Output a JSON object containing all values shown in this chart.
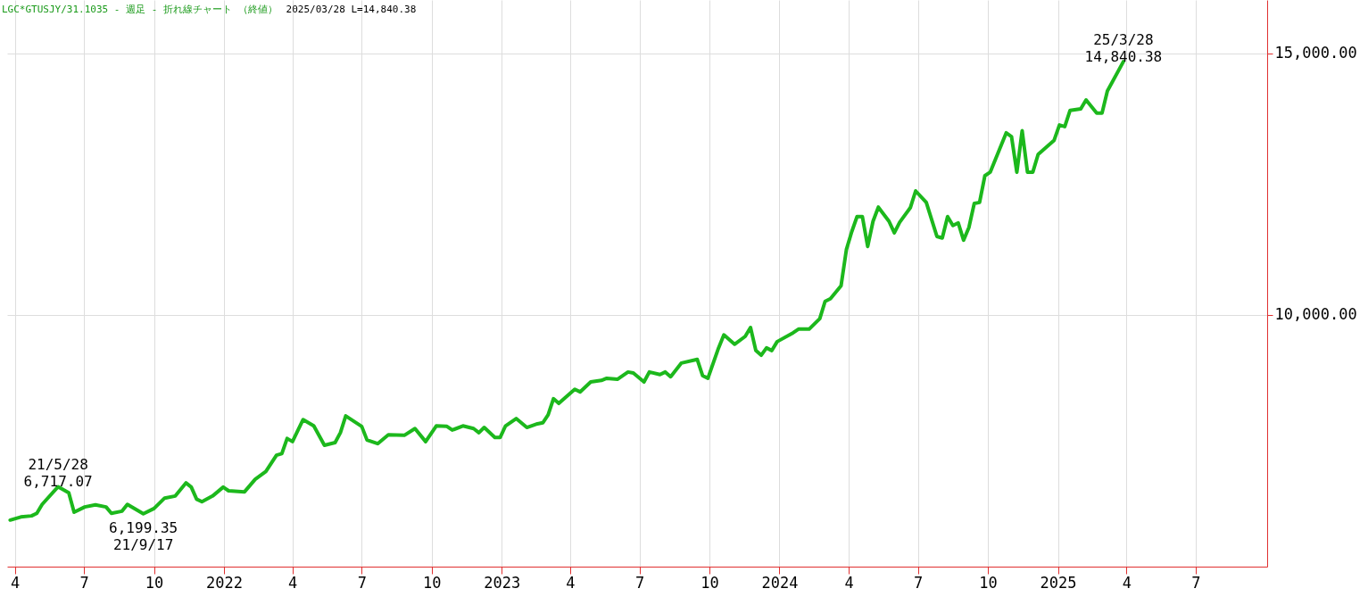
{
  "chart_data": {
    "type": "line",
    "title": "LGC*GTUSJY/31.1035 - 週足 - 折れ線チャート （終値）",
    "subtitle": "2025/03/28 L=14,840.38",
    "x": [
      "2021-03-26",
      "2021-04-09",
      "2021-04-23",
      "2021-04-30",
      "2021-05-07",
      "2021-05-28",
      "2021-06-11",
      "2021-06-18",
      "2021-07-02",
      "2021-07-16",
      "2021-07-30",
      "2021-08-06",
      "2021-08-20",
      "2021-08-27",
      "2021-09-17",
      "2021-10-01",
      "2021-10-15",
      "2021-10-29",
      "2021-11-12",
      "2021-11-19",
      "2021-11-26",
      "2021-12-03",
      "2021-12-17",
      "2021-12-31",
      "2022-01-07",
      "2022-01-28",
      "2022-02-11",
      "2022-02-25",
      "2022-03-11",
      "2022-03-18",
      "2022-03-25",
      "2022-04-01",
      "2022-04-15",
      "2022-04-29",
      "2022-05-13",
      "2022-05-27",
      "2022-06-03",
      "2022-06-10",
      "2022-07-01",
      "2022-07-08",
      "2022-07-22",
      "2022-08-05",
      "2022-08-26",
      "2022-09-09",
      "2022-09-23",
      "2022-10-07",
      "2022-10-21",
      "2022-10-28",
      "2022-11-11",
      "2022-11-25",
      "2022-12-02",
      "2022-12-09",
      "2022-12-23",
      "2022-12-30",
      "2023-01-06",
      "2023-01-20",
      "2023-02-03",
      "2023-02-17",
      "2023-02-24",
      "2023-03-03",
      "2023-03-10",
      "2023-03-17",
      "2023-04-07",
      "2023-04-14",
      "2023-04-28",
      "2023-05-12",
      "2023-05-19",
      "2023-06-02",
      "2023-06-16",
      "2023-06-23",
      "2023-07-07",
      "2023-07-14",
      "2023-07-28",
      "2023-08-04",
      "2023-08-11",
      "2023-08-25",
      "2023-09-15",
      "2023-09-22",
      "2023-09-29",
      "2023-10-13",
      "2023-10-20",
      "2023-11-03",
      "2023-11-17",
      "2023-11-24",
      "2023-12-01",
      "2023-12-08",
      "2023-12-15",
      "2023-12-22",
      "2023-12-29",
      "2024-01-19",
      "2024-01-26",
      "2024-02-09",
      "2024-02-23",
      "2024-03-01",
      "2024-03-08",
      "2024-03-22",
      "2024-03-29",
      "2024-04-05",
      "2024-04-12",
      "2024-04-19",
      "2024-04-26",
      "2024-05-03",
      "2024-05-10",
      "2024-05-24",
      "2024-05-31",
      "2024-06-07",
      "2024-06-21",
      "2024-06-28",
      "2024-07-12",
      "2024-07-26",
      "2024-08-02",
      "2024-08-09",
      "2024-08-16",
      "2024-08-23",
      "2024-08-30",
      "2024-09-06",
      "2024-09-13",
      "2024-09-20",
      "2024-09-27",
      "2024-10-04",
      "2024-10-25",
      "2024-11-01",
      "2024-11-08",
      "2024-11-15",
      "2024-11-22",
      "2024-11-29",
      "2024-12-06",
      "2024-12-27",
      "2025-01-03",
      "2025-01-10",
      "2025-01-17",
      "2025-01-31",
      "2025-02-07",
      "2025-02-21",
      "2025-02-28",
      "2025-03-07",
      "2025-03-28"
    ],
    "series": [
      {
        "color": "#1cb81c",
        "values": [
          6080,
          6140,
          6160,
          6210,
          6380,
          6717.07,
          6600,
          6230,
          6330,
          6370,
          6330,
          6210,
          6250,
          6380,
          6199.35,
          6300,
          6500,
          6540,
          6790,
          6710,
          6480,
          6430,
          6540,
          6710,
          6640,
          6620,
          6860,
          7010,
          7320,
          7350,
          7640,
          7580,
          8000,
          7880,
          7510,
          7560,
          7750,
          8070,
          7870,
          7610,
          7540,
          7710,
          7700,
          7830,
          7580,
          7880,
          7870,
          7800,
          7880,
          7830,
          7750,
          7850,
          7660,
          7660,
          7880,
          8020,
          7850,
          7920,
          7940,
          8090,
          8400,
          8310,
          8580,
          8530,
          8720,
          8750,
          8790,
          8770,
          8910,
          8890,
          8720,
          8910,
          8860,
          8910,
          8820,
          9080,
          9150,
          8840,
          8790,
          9370,
          9620,
          9440,
          9590,
          9760,
          9320,
          9230,
          9370,
          9320,
          9490,
          9660,
          9730,
          9730,
          9930,
          10260,
          10310,
          10560,
          11250,
          11590,
          11880,
          11880,
          11310,
          11790,
          12060,
          11790,
          11570,
          11770,
          12050,
          12370,
          12150,
          11500,
          11470,
          11880,
          11710,
          11760,
          11430,
          11670,
          12130,
          12150,
          12660,
          12730,
          13480,
          13410,
          12730,
          13520,
          12730,
          12730,
          13070,
          13340,
          13630,
          13600,
          13910,
          13940,
          14110,
          13860,
          13860,
          14280,
          14840.38
        ]
      }
    ],
    "xlim": [
      "2021-03-22",
      "2025-10-03"
    ],
    "xticks": [
      {
        "value": "2021-04-01",
        "label": "4"
      },
      {
        "value": "2021-07-01",
        "label": "7"
      },
      {
        "value": "2021-10-01",
        "label": "10"
      },
      {
        "value": "2022-01-01",
        "label": "2022"
      },
      {
        "value": "2022-04-01",
        "label": "4"
      },
      {
        "value": "2022-07-01",
        "label": "7"
      },
      {
        "value": "2022-10-01",
        "label": "10"
      },
      {
        "value": "2023-01-01",
        "label": "2023"
      },
      {
        "value": "2023-04-01",
        "label": "4"
      },
      {
        "value": "2023-07-01",
        "label": "7"
      },
      {
        "value": "2023-10-01",
        "label": "10"
      },
      {
        "value": "2024-01-01",
        "label": "2024"
      },
      {
        "value": "2024-04-01",
        "label": "4"
      },
      {
        "value": "2024-07-01",
        "label": "7"
      },
      {
        "value": "2024-10-01",
        "label": "10"
      },
      {
        "value": "2025-01-01",
        "label": "2025"
      },
      {
        "value": "2025-04-01",
        "label": "4"
      },
      {
        "value": "2025-07-01",
        "label": "7"
      }
    ],
    "ylim": [
      5190,
      16020
    ],
    "yticks": [
      {
        "value": 10000,
        "label": "10,000.00"
      },
      {
        "value": 15000,
        "label": "15,000.00"
      }
    ],
    "grid": true,
    "annotations": [
      {
        "text": "21/5/28\n6,717.07",
        "x": "2021-05-28",
        "y": 6717.07
      },
      {
        "text": "6,199.35\n21/9/17",
        "x": "2021-09-17",
        "y": 6199.35
      },
      {
        "text": "25/3/28\n14,840.38",
        "x": "2025-03-28",
        "y": 14840.38
      }
    ]
  }
}
